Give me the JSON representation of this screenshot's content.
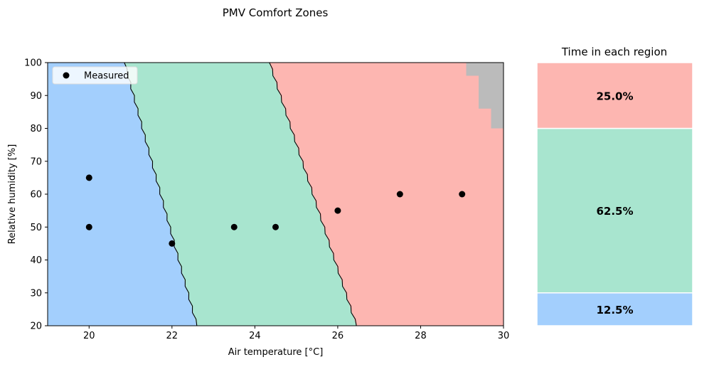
{
  "chart_data": [
    {
      "type": "scatter",
      "title": "PMV Comfort Zones",
      "xlabel": "Air temperature [°C]",
      "ylabel": "Relative humidity [%]",
      "xlim": [
        19,
        30
      ],
      "ylim": [
        20,
        100
      ],
      "xticks": [
        20,
        22,
        24,
        26,
        28,
        30
      ],
      "yticks": [
        20,
        30,
        40,
        50,
        60,
        70,
        80,
        90,
        100
      ],
      "grid": false,
      "legend": {
        "placement": "top-left",
        "entries": [
          "Measured"
        ]
      },
      "series": [
        {
          "name": "Measured",
          "color": "#000000",
          "points": [
            {
              "x": 20.0,
              "y": 65
            },
            {
              "x": 20.0,
              "y": 50
            },
            {
              "x": 22.0,
              "y": 45
            },
            {
              "x": 23.5,
              "y": 50
            },
            {
              "x": 24.5,
              "y": 50
            },
            {
              "x": 26.0,
              "y": 55
            },
            {
              "x": 27.5,
              "y": 60
            },
            {
              "x": 29.0,
              "y": 60
            }
          ]
        }
      ],
      "regions": [
        {
          "zone": "cool",
          "color": "#a3cffd"
        },
        {
          "zone": "comfortable",
          "color": "#a8e5cf"
        },
        {
          "zone": "warm",
          "color": "#fdb6b1"
        },
        {
          "zone": "out-of-range",
          "color": "#bbbbbb"
        }
      ],
      "boundaries": [
        {
          "between": "cool-comfortable",
          "points": [
            [
              20.85,
              100
            ],
            [
              22.6,
              20
            ]
          ]
        },
        {
          "between": "comfortable-warm",
          "points": [
            [
              24.35,
              100
            ],
            [
              26.45,
              20
            ]
          ]
        }
      ],
      "out_of_range_steps": [
        {
          "x_from": 29.1,
          "y_from": 96
        },
        {
          "x_from": 29.4,
          "y_from": 86
        },
        {
          "x_from": 29.7,
          "y_from": 80
        }
      ]
    },
    {
      "type": "bar",
      "title": "Time in each region",
      "stacked": true,
      "ylim": [
        0,
        100
      ],
      "segments": [
        {
          "label": "12.5%",
          "value": 12.5,
          "color": "#a3cffd"
        },
        {
          "label": "62.5%",
          "value": 62.5,
          "color": "#a8e5cf"
        },
        {
          "label": "25.0%",
          "value": 25.0,
          "color": "#fdb6b1"
        }
      ]
    }
  ]
}
